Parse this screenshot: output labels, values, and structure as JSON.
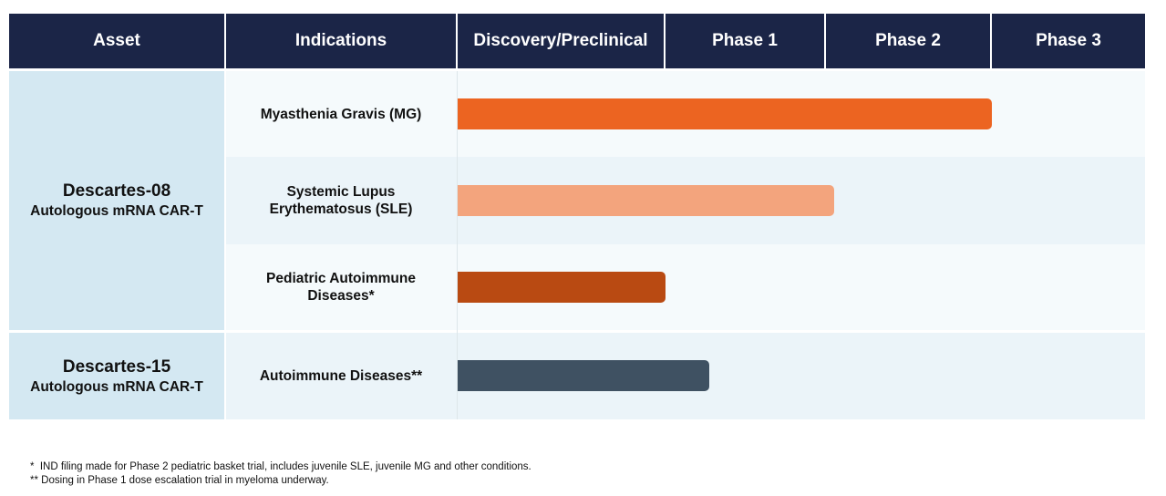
{
  "header": {
    "asset": "Asset",
    "indications": "Indications",
    "phases": [
      "Discovery/Preclinical",
      "Phase 1",
      "Phase 2",
      "Phase 3"
    ]
  },
  "assets": [
    {
      "name": "Descartes-08",
      "subtitle": "Autologous mRNA CAR-T"
    },
    {
      "name": "Descartes-15",
      "subtitle": "Autologous mRNA CAR-T"
    }
  ],
  "chart_data": {
    "type": "bar",
    "orientation": "horizontal",
    "stage_axis": [
      "Discovery/Preclinical",
      "Phase 1",
      "Phase 2",
      "Phase 3"
    ],
    "rows": [
      {
        "asset": "Descartes-08",
        "indication": "Myasthenia Gravis (MG)",
        "progress_stages": 3.0,
        "color": "#ec6421"
      },
      {
        "asset": "Descartes-08",
        "indication": "Systemic Lupus Erythematosus (SLE)",
        "progress_stages": 2.05,
        "color": "#f3a47d"
      },
      {
        "asset": "Descartes-08",
        "indication": "Pediatric Autoimmune Diseases*",
        "progress_stages": 1.0,
        "color": "#b94a12"
      },
      {
        "asset": "Descartes-15",
        "indication": "Autoimmune Diseases**",
        "progress_stages": 1.27,
        "color": "#3f5162"
      }
    ]
  },
  "footnotes": [
    "*  IND filing made for Phase 2 pediatric basket trial, includes juvenile SLE, juvenile MG and other conditions.",
    "** Dosing in Phase 1 dose escalation trial in myeloma underway."
  ]
}
